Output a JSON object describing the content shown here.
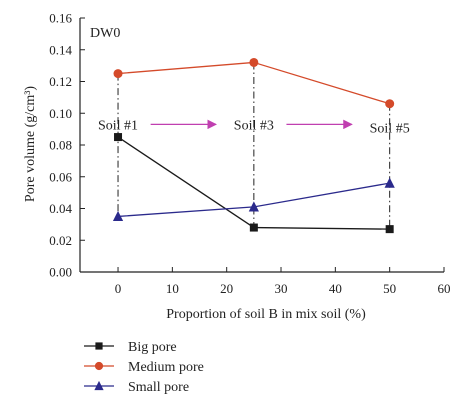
{
  "chart_data": {
    "type": "line",
    "panel_label": "DW0",
    "xlabel": "Proportion of soil B in mix soil (%)",
    "ylabel": "Pore volume (g/cm³)",
    "xlim": [
      -7,
      60
    ],
    "ylim": [
      0,
      0.16
    ],
    "xticks": [
      0,
      10,
      20,
      30,
      40,
      50,
      60
    ],
    "yticks": [
      "0.00",
      "0.02",
      "0.04",
      "0.06",
      "0.08",
      "0.10",
      "0.12",
      "0.14",
      "0.16"
    ],
    "x": [
      0,
      25,
      50
    ],
    "series": [
      {
        "name": "Big pore",
        "values": [
          0.085,
          0.028,
          0.027
        ],
        "color": "#1a1a1a",
        "marker": "square"
      },
      {
        "name": "Medium pore",
        "values": [
          0.125,
          0.132,
          0.106
        ],
        "color": "#d44a2a",
        "marker": "circle"
      },
      {
        "name": "Small pore",
        "values": [
          0.035,
          0.041,
          0.056
        ],
        "color": "#2b2a8c",
        "marker": "triangle"
      }
    ],
    "annotations": [
      {
        "text": "Soil #1",
        "x": 0,
        "y": 0.093
      },
      {
        "text": "Soil #3",
        "x": 25,
        "y": 0.093
      },
      {
        "text": "Soil #5",
        "x": 50,
        "y": 0.091
      }
    ],
    "arrows": [
      {
        "from": 6,
        "to": 18,
        "y": 0.093
      },
      {
        "from": 31,
        "to": 43,
        "y": 0.093
      }
    ],
    "arrow_color": "#c03fb0",
    "grid": false,
    "legend_position": "below"
  }
}
